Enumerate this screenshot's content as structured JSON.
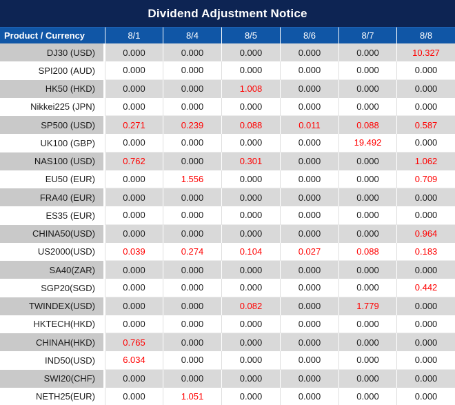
{
  "title": "Dividend Adjustment Notice",
  "colors": {
    "title_bar_bg": "#0D2453",
    "header_row_bg": "#1056A6",
    "stripe_product_bg": "#C9C9C9",
    "stripe_value_bg": "#D9D9D9",
    "highlight_value_text": "#FF0000",
    "normal_value_text": "#1A1A1A",
    "header_text": "#FFFFFF"
  },
  "table": {
    "product_header": "Product / Currency",
    "date_columns": [
      "8/1",
      "8/4",
      "8/5",
      "8/6",
      "8/7",
      "8/8"
    ],
    "rows": [
      {
        "product": "DJ30 (USD)",
        "values": [
          "0.000",
          "0.000",
          "0.000",
          "0.000",
          "0.000",
          "10.327"
        ],
        "red": [
          false,
          false,
          false,
          false,
          false,
          true
        ]
      },
      {
        "product": "SPI200 (AUD)",
        "values": [
          "0.000",
          "0.000",
          "0.000",
          "0.000",
          "0.000",
          "0.000"
        ],
        "red": [
          false,
          false,
          false,
          false,
          false,
          false
        ]
      },
      {
        "product": "HK50 (HKD)",
        "values": [
          "0.000",
          "0.000",
          "1.008",
          "0.000",
          "0.000",
          "0.000"
        ],
        "red": [
          false,
          false,
          true,
          false,
          false,
          false
        ]
      },
      {
        "product": "Nikkei225 (JPN)",
        "values": [
          "0.000",
          "0.000",
          "0.000",
          "0.000",
          "0.000",
          "0.000"
        ],
        "red": [
          false,
          false,
          false,
          false,
          false,
          false
        ]
      },
      {
        "product": "SP500 (USD)",
        "values": [
          "0.271",
          "0.239",
          "0.088",
          "0.011",
          "0.088",
          "0.587"
        ],
        "red": [
          true,
          true,
          true,
          true,
          true,
          true
        ]
      },
      {
        "product": "UK100 (GBP)",
        "values": [
          "0.000",
          "0.000",
          "0.000",
          "0.000",
          "19.492",
          "0.000"
        ],
        "red": [
          false,
          false,
          false,
          false,
          true,
          false
        ]
      },
      {
        "product": "NAS100 (USD)",
        "values": [
          "0.762",
          "0.000",
          "0.301",
          "0.000",
          "0.000",
          "1.062"
        ],
        "red": [
          true,
          false,
          true,
          false,
          false,
          true
        ]
      },
      {
        "product": "EU50 (EUR)",
        "values": [
          "0.000",
          "1.556",
          "0.000",
          "0.000",
          "0.000",
          "0.709"
        ],
        "red": [
          false,
          true,
          false,
          false,
          false,
          true
        ]
      },
      {
        "product": "FRA40 (EUR)",
        "values": [
          "0.000",
          "0.000",
          "0.000",
          "0.000",
          "0.000",
          "0.000"
        ],
        "red": [
          false,
          false,
          false,
          false,
          false,
          false
        ]
      },
      {
        "product": "ES35 (EUR)",
        "values": [
          "0.000",
          "0.000",
          "0.000",
          "0.000",
          "0.000",
          "0.000"
        ],
        "red": [
          false,
          false,
          false,
          false,
          false,
          false
        ]
      },
      {
        "product": "CHINA50(USD)",
        "values": [
          "0.000",
          "0.000",
          "0.000",
          "0.000",
          "0.000",
          "0.964"
        ],
        "red": [
          false,
          false,
          false,
          false,
          false,
          true
        ]
      },
      {
        "product": "US2000(USD)",
        "values": [
          "0.039",
          "0.274",
          "0.104",
          "0.027",
          "0.088",
          "0.183"
        ],
        "red": [
          true,
          true,
          true,
          true,
          true,
          true
        ]
      },
      {
        "product": "SA40(ZAR)",
        "values": [
          "0.000",
          "0.000",
          "0.000",
          "0.000",
          "0.000",
          "0.000"
        ],
        "red": [
          false,
          false,
          false,
          false,
          false,
          false
        ]
      },
      {
        "product": "SGP20(SGD)",
        "values": [
          "0.000",
          "0.000",
          "0.000",
          "0.000",
          "0.000",
          "0.442"
        ],
        "red": [
          false,
          false,
          false,
          false,
          false,
          true
        ]
      },
      {
        "product": "TWINDEX(USD)",
        "values": [
          "0.000",
          "0.000",
          "0.082",
          "0.000",
          "1.779",
          "0.000"
        ],
        "red": [
          false,
          false,
          true,
          false,
          true,
          false
        ]
      },
      {
        "product": "HKTECH(HKD)",
        "values": [
          "0.000",
          "0.000",
          "0.000",
          "0.000",
          "0.000",
          "0.000"
        ],
        "red": [
          false,
          false,
          false,
          false,
          false,
          false
        ]
      },
      {
        "product": "CHINAH(HKD)",
        "values": [
          "0.765",
          "0.000",
          "0.000",
          "0.000",
          "0.000",
          "0.000"
        ],
        "red": [
          true,
          false,
          false,
          false,
          false,
          false
        ]
      },
      {
        "product": "IND50(USD)",
        "values": [
          "6.034",
          "0.000",
          "0.000",
          "0.000",
          "0.000",
          "0.000"
        ],
        "red": [
          true,
          false,
          false,
          false,
          false,
          false
        ]
      },
      {
        "product": "SWI20(CHF)",
        "values": [
          "0.000",
          "0.000",
          "0.000",
          "0.000",
          "0.000",
          "0.000"
        ],
        "red": [
          false,
          false,
          false,
          false,
          false,
          false
        ]
      },
      {
        "product": "NETH25(EUR)",
        "values": [
          "0.000",
          "1.051",
          "0.000",
          "0.000",
          "0.000",
          "0.000"
        ],
        "red": [
          false,
          true,
          false,
          false,
          false,
          false
        ]
      }
    ]
  }
}
